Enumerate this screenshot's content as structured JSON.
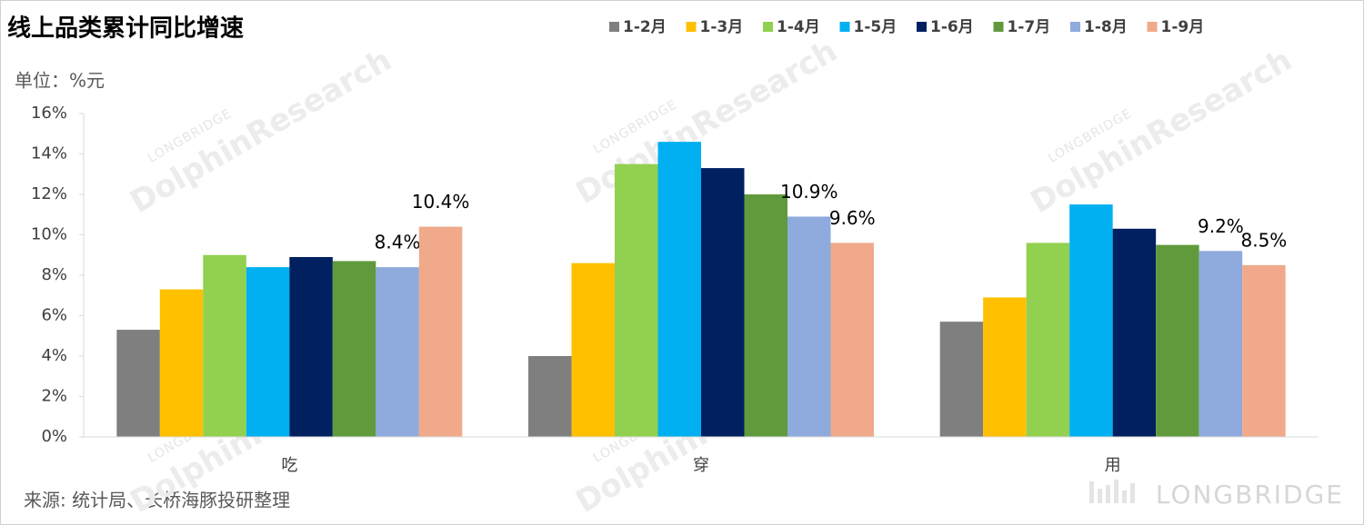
{
  "chart_data": {
    "type": "bar",
    "title": "线上品类累计同比增速",
    "unit_label": "单位：%元",
    "source": "来源: 统计局、长桥海豚投研整理",
    "watermark": "LONGBRIDGE",
    "watermark_sub": "DolphinResearch",
    "categories": [
      "吃",
      "穿",
      "用"
    ],
    "series": [
      {
        "name": "1-2月",
        "color": "#7f7f7f",
        "values": [
          5.3,
          4.0,
          5.7
        ]
      },
      {
        "name": "1-3月",
        "color": "#ffc000",
        "values": [
          7.3,
          8.6,
          6.9
        ]
      },
      {
        "name": "1-4月",
        "color": "#92d050",
        "values": [
          9.0,
          13.5,
          9.6
        ]
      },
      {
        "name": "1-5月",
        "color": "#00b0f0",
        "values": [
          8.4,
          14.6,
          11.5
        ]
      },
      {
        "name": "1-6月",
        "color": "#002060",
        "values": [
          8.9,
          13.3,
          10.3
        ]
      },
      {
        "name": "1-7月",
        "color": "#609a3d",
        "values": [
          8.7,
          12.0,
          9.5
        ]
      },
      {
        "name": "1-8月",
        "color": "#8faadc",
        "values": [
          8.4,
          10.9,
          9.2
        ],
        "value_labels": [
          "8.4%",
          "10.9%",
          "9.2%"
        ]
      },
      {
        "name": "1-9月",
        "color": "#f0a98a",
        "values": [
          10.4,
          9.6,
          8.5
        ],
        "value_labels": [
          "10.4%",
          "9.6%",
          "8.5%"
        ]
      }
    ],
    "ylim": [
      0,
      16
    ],
    "yticks": [
      {
        "value": 0,
        "label": "0%"
      },
      {
        "value": 2,
        "label": "2%"
      },
      {
        "value": 4,
        "label": "4%"
      },
      {
        "value": 6,
        "label": "6%"
      },
      {
        "value": 8,
        "label": "8%"
      },
      {
        "value": 10,
        "label": "10%"
      },
      {
        "value": 12,
        "label": "12%"
      },
      {
        "value": 14,
        "label": "14%"
      },
      {
        "value": 16,
        "label": "16%"
      }
    ],
    "grid": false,
    "legend": "top"
  }
}
